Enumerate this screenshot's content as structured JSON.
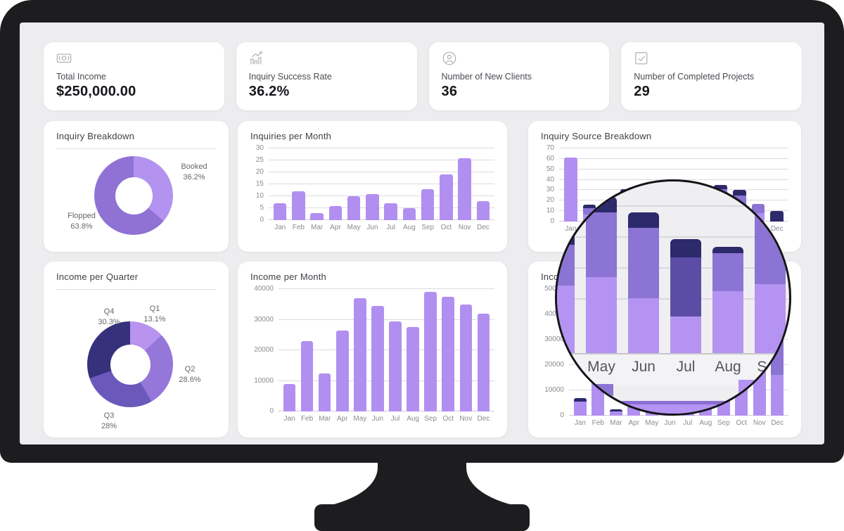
{
  "kpis": [
    {
      "label": "Total Income",
      "value": "$250,000.00",
      "icon": "banknote-icon"
    },
    {
      "label": "Inquiry Success Rate",
      "value": "36.2%",
      "icon": "growth-chart-icon"
    },
    {
      "label": "Number of New Clients",
      "value": "36",
      "icon": "person-icon"
    },
    {
      "label": "Number of Completed Projects",
      "value": "29",
      "icon": "checkbox-icon"
    }
  ],
  "colors": {
    "accent_light_purple": "#b18ff1",
    "accent_medium_purple": "#8b74d3",
    "accent_slate_purple": "#5b4da6",
    "accent_navy": "#2c2a6b",
    "screen_background": "#edecef",
    "card_background": "#ffffff",
    "bezel_black": "#1d1c1e",
    "grid_line": "#dcdbe0",
    "axis_text": "#8b8a92",
    "title_text": "#403f47",
    "value_text": "#17161c"
  },
  "chart_data": [
    {
      "type": "pie",
      "title": "Inquiry Breakdown",
      "slices": [
        {
          "label": "Booked",
          "pct_label": "36.2%",
          "value": 36.2
        },
        {
          "label": "Flopped",
          "pct_label": "63.8%",
          "value": 63.8
        }
      ],
      "colors": [
        "#b493f0",
        "#8f72d4"
      ],
      "legend": "none"
    },
    {
      "type": "bar",
      "title": "Inquiries per Month",
      "categories": [
        "Jan",
        "Feb",
        "Mar",
        "Apr",
        "May",
        "Jun",
        "Jul",
        "Aug",
        "Sep",
        "Oct",
        "Nov",
        "Dec"
      ],
      "values": [
        7,
        12,
        3,
        6,
        10,
        11,
        7,
        5,
        13,
        19,
        26,
        8
      ],
      "ylim": [
        0,
        30
      ],
      "yticks": [
        0,
        5,
        10,
        15,
        20,
        25,
        30
      ],
      "bar_color": "#b18ff1"
    },
    {
      "type": "stacked-bar",
      "title": "Inquiry Source Breakdown",
      "categories": [
        "Jan",
        "Feb",
        "Mar",
        "Apr",
        "May",
        "Jun",
        "Jul",
        "Aug",
        "Sep",
        "Oct",
        "Nov",
        "Dec"
      ],
      "ylim": [
        0,
        70
      ],
      "yticks": [
        0,
        10,
        20,
        30,
        40,
        50,
        60,
        70
      ],
      "series": [
        {
          "name": "segment-light",
          "color": "#b18ff1",
          "values": [
            61,
            7,
            4,
            14,
            16,
            14,
            9,
            14,
            14,
            12,
            8,
            0
          ]
        },
        {
          "name": "segment-medium",
          "color": "#8b74d3",
          "values": [
            0,
            6,
            3,
            14,
            15,
            14,
            0,
            9,
            17,
            13,
            9,
            0
          ]
        },
        {
          "name": "segment-slate",
          "color": "#5b4da6",
          "values": [
            0,
            0,
            0,
            0,
            0,
            0,
            13,
            0,
            0,
            0,
            0,
            0
          ]
        },
        {
          "name": "segment-navy",
          "color": "#2c2a6b",
          "values": [
            0,
            3,
            3,
            3,
            4,
            4,
            5,
            2,
            4,
            5,
            0,
            10
          ]
        }
      ]
    },
    {
      "type": "pie",
      "title": "Income per Quarter",
      "slices": [
        {
          "label": "Q1",
          "pct_label": "13.1%",
          "value": 13.1
        },
        {
          "label": "Q2",
          "pct_label": "28.6%",
          "value": 28.6
        },
        {
          "label": "Q3",
          "pct_label": "28%",
          "value": 28
        },
        {
          "label": "Q4",
          "pct_label": "30.3%",
          "value": 30.3
        }
      ],
      "colors": [
        "#b893f0",
        "#9577da",
        "#6a59bb",
        "#36317b"
      ],
      "legend": "none"
    },
    {
      "type": "bar",
      "title": "Income per Month",
      "categories": [
        "Jan",
        "Feb",
        "Mar",
        "Apr",
        "May",
        "Jun",
        "Jul",
        "Aug",
        "Sep",
        "Oct",
        "Nov",
        "Dec"
      ],
      "values": [
        9000,
        23000,
        12500,
        26500,
        37000,
        34500,
        29500,
        27500,
        39000,
        37500,
        35000,
        32000
      ],
      "ylim": [
        0,
        40000
      ],
      "yticks": [
        0,
        10000,
        20000,
        30000,
        40000
      ],
      "bar_color": "#b18ff1"
    },
    {
      "type": "stacked-bar",
      "title": "Income Source Breakdown",
      "categories": [
        "Jan",
        "Feb",
        "Mar",
        "Apr",
        "May",
        "Jun",
        "Jul",
        "Aug",
        "Sep",
        "Oct",
        "Nov",
        "Dec"
      ],
      "ylim": [
        0,
        50000
      ],
      "yticks": [
        0,
        10000,
        20000,
        30000,
        40000,
        50000
      ],
      "series": [
        {
          "name": "segment-light",
          "color": "#b18ff1",
          "values": [
            5500,
            30000,
            1800,
            4500,
            30000,
            26000,
            3200,
            4500,
            33000,
            35000,
            40000,
            16000
          ]
        },
        {
          "name": "segment-medium",
          "color": "#8b74d3",
          "values": [
            0,
            6500,
            0,
            0,
            10000,
            12000,
            1300,
            0,
            10000,
            8000,
            6000,
            15000
          ]
        },
        {
          "name": "segment-navy",
          "color": "#2c2a6b",
          "values": [
            1500,
            1500,
            800,
            0,
            2000,
            2000,
            0,
            0,
            2000,
            0,
            0,
            2000
          ]
        }
      ]
    }
  ],
  "lens": {
    "visible_months": [
      "May",
      "Jun",
      "Jul",
      "Aug",
      "Sep"
    ],
    "bars": [
      {
        "light": 96,
        "mid": 58,
        "navy": 16
      },
      {
        "light": 108,
        "mid": 92,
        "navy": 22
      },
      {
        "light": 78,
        "mid": 100,
        "navy": 22
      },
      {
        "light": 52,
        "mid": 84,
        "navy": 26,
        "mid_dark": true
      },
      {
        "light": 88,
        "mid": 54,
        "navy": 9
      },
      {
        "light": 98,
        "mid": 110,
        "navy": 24
      },
      {
        "light": 118,
        "mid": 54,
        "navy": 16
      }
    ]
  }
}
